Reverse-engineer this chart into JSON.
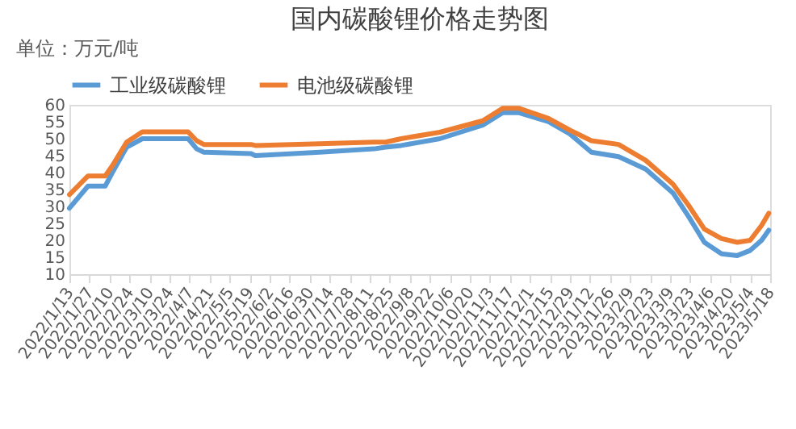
{
  "chart_data": {
    "type": "line",
    "title": "国内碳酸锂价格走势图",
    "annotations": [
      "单位：万元/吨"
    ],
    "x": [
      "2022-01-13",
      "2022-01-26",
      "2022-02-07",
      "2022-02-12",
      "2022-02-22",
      "2022-03-05",
      "2022-04-06",
      "2022-04-12",
      "2022-04-17",
      "2022-05-20",
      "2022-05-23",
      "2022-07-07",
      "2022-08-14",
      "2022-08-22",
      "2022-09-02",
      "2022-09-29",
      "2022-10-29",
      "2022-11-12",
      "2022-11-23",
      "2022-12-14",
      "2022-12-29",
      "2023-01-13",
      "2023-02-01",
      "2023-02-20",
      "2023-03-11",
      "2023-03-22",
      "2023-04-02",
      "2023-04-14",
      "2023-04-25",
      "2023-05-04",
      "2023-05-12",
      "2023-05-17"
    ],
    "series": [
      {
        "name": "工业级碳酸锂",
        "color": "#5b9bd5",
        "values": [
          29.5,
          36,
          36,
          40,
          47.5,
          50,
          50,
          47,
          46,
          45.6,
          45,
          46,
          47,
          47.5,
          48,
          50,
          54,
          57.7,
          57.7,
          55,
          51.4,
          46,
          44.7,
          41,
          34,
          27,
          19.4,
          16,
          15.5,
          17,
          20,
          23
        ]
      },
      {
        "name": "电池级碳酸锂",
        "color": "#ed7d31",
        "values": [
          33.5,
          39,
          39,
          42,
          49,
          52,
          52,
          49.4,
          48.3,
          48.3,
          48,
          48.5,
          49,
          49,
          50,
          51.9,
          55.3,
          59,
          59,
          56,
          52.5,
          49.4,
          48.3,
          43.6,
          36.6,
          30.3,
          23.3,
          20.5,
          19.4,
          20,
          24.4,
          28
        ]
      }
    ],
    "xlim": [
      "2022-01-13",
      "2023-05-18"
    ],
    "xticks": [
      {
        "value": "2022-01-13",
        "label": "2022/1/13"
      },
      {
        "value": "2022-01-27",
        "label": "2022/1/27"
      },
      {
        "value": "2022-02-10",
        "label": "2022/2/10"
      },
      {
        "value": "2022-02-24",
        "label": "2022/2/24"
      },
      {
        "value": "2022-03-10",
        "label": "2022/3/10"
      },
      {
        "value": "2022-03-24",
        "label": "2022/3/24"
      },
      {
        "value": "2022-04-07",
        "label": "2022/4/7"
      },
      {
        "value": "2022-04-21",
        "label": "2022/4/21"
      },
      {
        "value": "2022-05-05",
        "label": "2022/5/5"
      },
      {
        "value": "2022-05-19",
        "label": "2022/5/19"
      },
      {
        "value": "2022-06-02",
        "label": "2022/6/2"
      },
      {
        "value": "2022-06-16",
        "label": "2022/6/16"
      },
      {
        "value": "2022-06-30",
        "label": "2022/6/30"
      },
      {
        "value": "2022-07-14",
        "label": "2022/7/14"
      },
      {
        "value": "2022-07-28",
        "label": "2022/7/28"
      },
      {
        "value": "2022-08-11",
        "label": "2022/8/11"
      },
      {
        "value": "2022-08-25",
        "label": "2022/8/25"
      },
      {
        "value": "2022-09-08",
        "label": "2022/9/8"
      },
      {
        "value": "2022-09-22",
        "label": "2022/9/22"
      },
      {
        "value": "2022-10-06",
        "label": "2022/10/6"
      },
      {
        "value": "2022-10-20",
        "label": "2022/10/20"
      },
      {
        "value": "2022-11-03",
        "label": "2022/11/3"
      },
      {
        "value": "2022-11-17",
        "label": "2022/11/17"
      },
      {
        "value": "2022-12-01",
        "label": "2022/12/1"
      },
      {
        "value": "2022-12-15",
        "label": "2022/12/15"
      },
      {
        "value": "2022-12-29",
        "label": "2022/12/29"
      },
      {
        "value": "2023-01-12",
        "label": "2023/1/12"
      },
      {
        "value": "2023-01-26",
        "label": "2023/1/26"
      },
      {
        "value": "2023-02-09",
        "label": "2023/2/9"
      },
      {
        "value": "2023-02-23",
        "label": "2023/2/23"
      },
      {
        "value": "2023-03-09",
        "label": "2023/3/9"
      },
      {
        "value": "2023-03-23",
        "label": "2023/3/23"
      },
      {
        "value": "2023-04-06",
        "label": "2023/4/6"
      },
      {
        "value": "2023-04-20",
        "label": "2023/4/20"
      },
      {
        "value": "2023-05-04",
        "label": "2023/5/4"
      },
      {
        "value": "2023-05-18",
        "label": "2023/5/18"
      }
    ],
    "ylim": [
      10,
      60
    ],
    "yticks": [
      10,
      15,
      20,
      25,
      30,
      35,
      40,
      45,
      50,
      55,
      60
    ],
    "grid": false,
    "legend": "top"
  }
}
